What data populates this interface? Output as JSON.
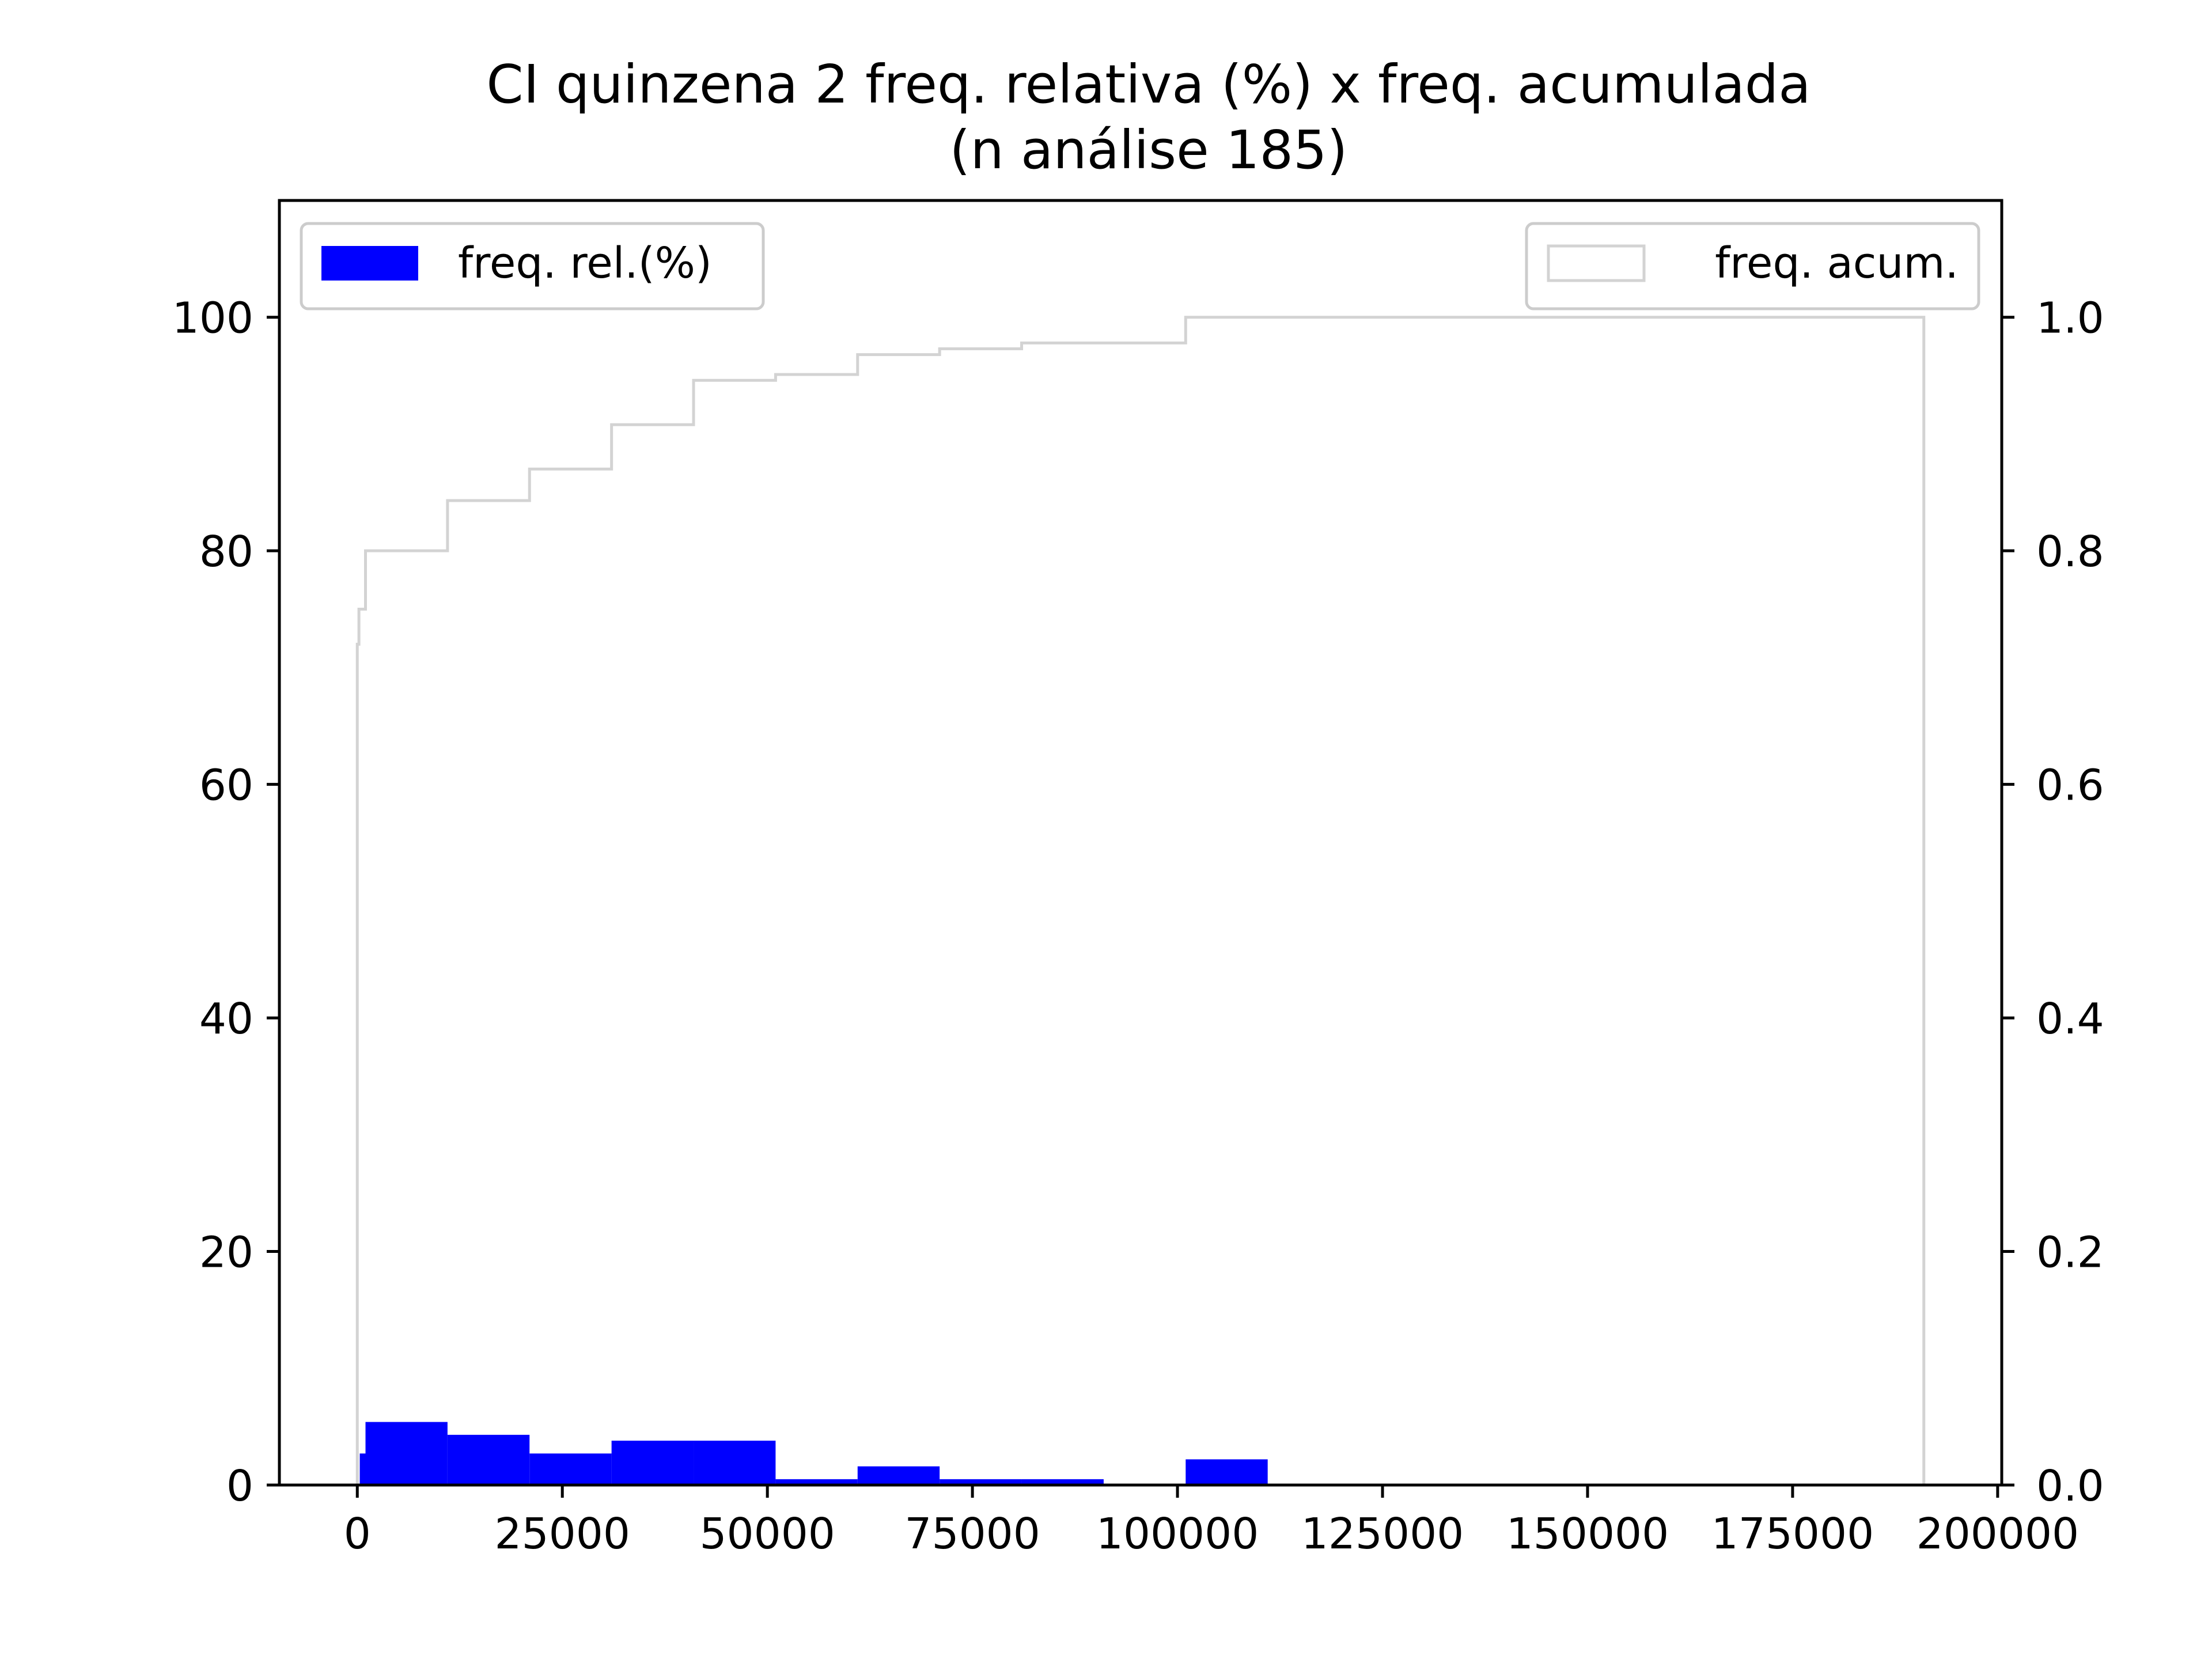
{
  "chart_data": {
    "type": "bar",
    "title": "CI quinzena 2 freq. relativa (%) x freq. acumulada",
    "subtitle": "(n análise 185)",
    "xlabel": "",
    "ylabel": "",
    "y2label": "",
    "xlim": [
      -9500,
      200500
    ],
    "ylim": [
      0,
      110
    ],
    "y2lim": [
      0,
      1.1
    ],
    "x_ticks": [
      "0",
      "25000",
      "50000",
      "75000",
      "100000",
      "125000",
      "150000",
      "175000",
      "200000"
    ],
    "x_tick_values": [
      0,
      25000,
      50000,
      75000,
      100000,
      125000,
      150000,
      175000,
      200000
    ],
    "y_ticks": [
      "0",
      "20",
      "40",
      "60",
      "80",
      "100"
    ],
    "y_tick_values": [
      0,
      20,
      40,
      60,
      80,
      100
    ],
    "y2_ticks": [
      "0.0",
      "0.2",
      "0.4",
      "0.6",
      "0.8",
      "1.0"
    ],
    "y2_tick_values": [
      0.0,
      0.2,
      0.4,
      0.6,
      0.8,
      1.0
    ],
    "grid": false,
    "series": [
      {
        "name": "freq. rel.(%)",
        "kind": "histogram",
        "color": "#0000ff",
        "bins": [
          {
            "x0": 300,
            "x1": 1000,
            "value": 2.7
          },
          {
            "x0": 1000,
            "x1": 11000,
            "value": 5.4
          },
          {
            "x0": 11000,
            "x1": 21000,
            "value": 4.3
          },
          {
            "x0": 21000,
            "x1": 31000,
            "value": 2.7
          },
          {
            "x0": 31000,
            "x1": 41000,
            "value": 3.8
          },
          {
            "x0": 41000,
            "x1": 51000,
            "value": 3.8
          },
          {
            "x0": 51000,
            "x1": 61000,
            "value": 0.5
          },
          {
            "x0": 61000,
            "x1": 71000,
            "value": 1.6
          },
          {
            "x0": 71000,
            "x1": 81000,
            "value": 0.5
          },
          {
            "x0": 81000,
            "x1": 91000,
            "value": 0.5
          },
          {
            "x0": 101000,
            "x1": 111000,
            "value": 2.2
          }
        ]
      },
      {
        "name": "freq. acum.",
        "kind": "step",
        "axis": "right",
        "color": "#d3d3d3",
        "steps": [
          {
            "x": 0,
            "y": 0.0
          },
          {
            "x": 0,
            "y": 0.72
          },
          {
            "x": 200,
            "y": 0.75
          },
          {
            "x": 1000,
            "y": 0.8
          },
          {
            "x": 11000,
            "y": 0.843
          },
          {
            "x": 21000,
            "y": 0.87
          },
          {
            "x": 31000,
            "y": 0.908
          },
          {
            "x": 41000,
            "y": 0.946
          },
          {
            "x": 51000,
            "y": 0.951
          },
          {
            "x": 61000,
            "y": 0.968
          },
          {
            "x": 71000,
            "y": 0.973
          },
          {
            "x": 81000,
            "y": 0.978
          },
          {
            "x": 101000,
            "y": 1.0
          },
          {
            "x": 191000,
            "y": 1.0
          },
          {
            "x": 191000,
            "y": 0.0
          }
        ]
      }
    ],
    "legends": [
      {
        "label": "freq. rel.(%)",
        "placement": "top-left",
        "style": "filled",
        "color": "#0000ff"
      },
      {
        "label": "freq. acum.",
        "placement": "top-right",
        "style": "outline",
        "color": "#d3d3d3"
      }
    ]
  }
}
